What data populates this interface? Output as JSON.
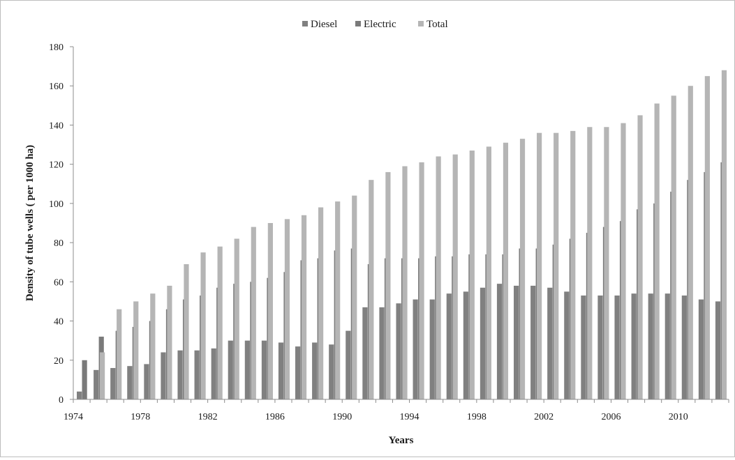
{
  "chart_data": {
    "type": "bar",
    "title": "",
    "xlabel": "Years",
    "ylabel": "Density of tube wells ( per 1000 ha)",
    "ylim": [
      0,
      180
    ],
    "yticks": [
      0,
      20,
      40,
      60,
      80,
      100,
      120,
      140,
      160,
      180
    ],
    "grid": false,
    "legend_position": "top-center",
    "x_tick_labels": [
      "1974",
      "1978",
      "1982",
      "1986",
      "1990",
      "1994",
      "1998",
      "2002",
      "2006",
      "2010"
    ],
    "categories": [
      1974,
      1975,
      1976,
      1977,
      1978,
      1979,
      1980,
      1981,
      1982,
      1983,
      1984,
      1985,
      1986,
      1987,
      1988,
      1989,
      1990,
      1991,
      1992,
      1993,
      1994,
      1995,
      1996,
      1997,
      1998,
      1999,
      2000,
      2001,
      2002,
      2003,
      2004,
      2005,
      2006,
      2007,
      2008,
      2009,
      2010,
      2011,
      2012
    ],
    "series": [
      {
        "name": "Diesel",
        "color": "#808080",
        "values": [
          4,
          15,
          16,
          17,
          18,
          24,
          25,
          25,
          26,
          30,
          30,
          30,
          29,
          27,
          29,
          28,
          35,
          47,
          47,
          49,
          51,
          51,
          54,
          55,
          57,
          59,
          58,
          58,
          57,
          55,
          53,
          53,
          53,
          54,
          54,
          54,
          53,
          51,
          50
        ]
      },
      {
        "name": "Electric",
        "color": "#7a7a7a",
        "values": [
          20,
          32,
          35,
          37,
          40,
          46,
          51,
          53,
          57,
          59,
          60,
          62,
          65,
          71,
          72,
          76,
          77,
          69,
          72,
          72,
          72,
          73,
          73,
          74,
          74,
          74,
          77,
          77,
          79,
          82,
          85,
          88,
          91,
          97,
          100,
          106,
          112,
          116,
          121
        ]
      },
      {
        "name": "Total",
        "color": "#b5b5b5",
        "values": [
          24,
          46,
          50,
          54,
          58,
          69,
          75,
          78,
          82,
          88,
          90,
          92,
          94,
          98,
          101,
          104,
          112,
          116,
          119,
          121,
          124,
          125,
          127,
          129,
          131,
          133,
          136,
          136,
          137,
          139,
          139,
          141,
          145,
          151,
          155,
          160,
          165,
          168,
          171
        ]
      }
    ]
  }
}
